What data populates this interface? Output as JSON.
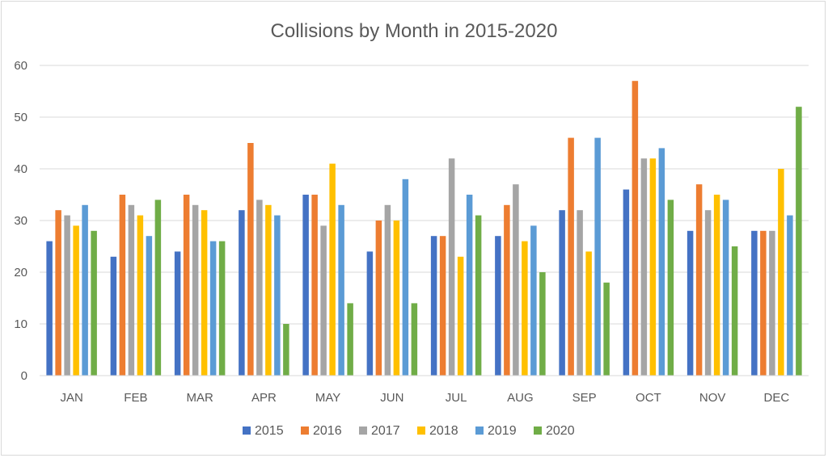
{
  "chart_data": {
    "type": "bar",
    "title": "Collisions by Month in 2015-2020",
    "xlabel": "",
    "ylabel": "",
    "ylim": [
      0,
      60
    ],
    "yticks": [
      0,
      10,
      20,
      30,
      40,
      50,
      60
    ],
    "grid": true,
    "legend_position": "bottom",
    "categories": [
      "JAN",
      "FEB",
      "MAR",
      "APR",
      "MAY",
      "JUN",
      "JUL",
      "AUG",
      "SEP",
      "OCT",
      "NOV",
      "DEC"
    ],
    "series": [
      {
        "name": "2015",
        "color": "#4472c4",
        "values": [
          26,
          23,
          24,
          32,
          35,
          24,
          27,
          27,
          32,
          36,
          28,
          28
        ]
      },
      {
        "name": "2016",
        "color": "#ed7d31",
        "values": [
          32,
          35,
          35,
          45,
          35,
          30,
          27,
          33,
          46,
          57,
          37,
          28
        ]
      },
      {
        "name": "2017",
        "color": "#a5a5a5",
        "values": [
          31,
          33,
          33,
          34,
          29,
          33,
          42,
          37,
          32,
          42,
          32,
          28
        ]
      },
      {
        "name": "2018",
        "color": "#ffc000",
        "values": [
          29,
          31,
          32,
          33,
          41,
          30,
          23,
          26,
          24,
          42,
          35,
          40
        ]
      },
      {
        "name": "2019",
        "color": "#5b9bd5",
        "values": [
          33,
          27,
          26,
          31,
          33,
          38,
          35,
          29,
          46,
          44,
          34,
          31
        ]
      },
      {
        "name": "2020",
        "color": "#70ad47",
        "values": [
          28,
          34,
          26,
          10,
          14,
          14,
          31,
          20,
          18,
          34,
          25,
          52
        ]
      }
    ]
  }
}
